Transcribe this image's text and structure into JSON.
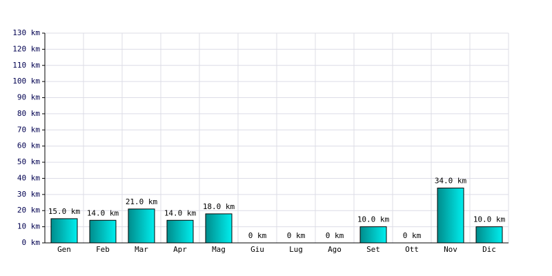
{
  "chart_data": {
    "type": "bar",
    "categories": [
      "Gen",
      "Feb",
      "Mar",
      "Apr",
      "Mag",
      "Giu",
      "Lug",
      "Ago",
      "Set",
      "Ott",
      "Nov",
      "Dic"
    ],
    "values": [
      15,
      14,
      21,
      14,
      18,
      0,
      0,
      0,
      10,
      0,
      34,
      10
    ],
    "value_labels": [
      "15.0 km",
      "14.0 km",
      "21.0 km",
      "14.0 km",
      "18.0 km",
      "0 km",
      "0 km",
      "0 km",
      "10.0 km",
      "0 km",
      "34.0 km",
      "10.0 km"
    ],
    "color": "#00eeee",
    "ylim": [
      0,
      130
    ],
    "yticks": [
      {
        "value": 0,
        "label": "0 km"
      },
      {
        "value": 10,
        "label": "10 km"
      },
      {
        "value": 20,
        "label": "20 km"
      },
      {
        "value": 30,
        "label": "30 km"
      },
      {
        "value": 40,
        "label": "40 km"
      },
      {
        "value": 50,
        "label": "50 km"
      },
      {
        "value": 60,
        "label": "60 km"
      },
      {
        "value": 70,
        "label": "70 km"
      },
      {
        "value": 80,
        "label": "80 km"
      },
      {
        "value": 90,
        "label": "90 km"
      },
      {
        "value": 100,
        "label": "100 km"
      },
      {
        "value": 110,
        "label": "110 km"
      },
      {
        "value": 120,
        "label": "120 km"
      },
      {
        "value": 130,
        "label": "130 km"
      }
    ],
    "grid": true
  }
}
